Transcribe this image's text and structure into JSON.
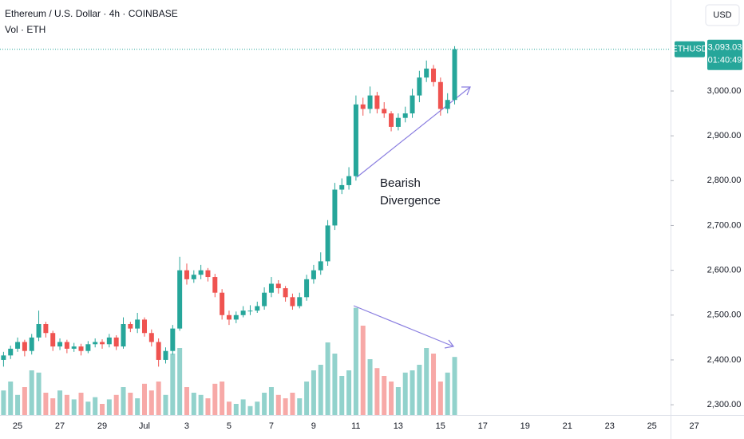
{
  "chart_data": {
    "type": "candlestick",
    "title": "Ethereum / U.S. Dollar · 4h · COINBASE",
    "volume_label": "Vol · ETH",
    "currency_button": "USD",
    "symbol_tag": "ETHUSD",
    "countdown": "01:40:49",
    "last_price": {
      "value": 3093.03,
      "label": "3,093.03"
    },
    "annotation": [
      "Bearish",
      "Divergence"
    ],
    "up_color": "#26a69a",
    "down_color": "#ef5350",
    "x_labels": [
      "25",
      "27",
      "29",
      "Jul",
      "3",
      "5",
      "7",
      "9",
      "11",
      "13",
      "15",
      "17",
      "19",
      "21",
      "23",
      "25",
      "27"
    ],
    "ylim": [
      2277,
      3203
    ],
    "yticks": [
      {
        "value": 2300,
        "label": "2,300.00"
      },
      {
        "value": 2400,
        "label": "2,400.00"
      },
      {
        "value": 2500,
        "label": "2,500.00"
      },
      {
        "value": 2600,
        "label": "2,600.00"
      },
      {
        "value": 2700,
        "label": "2,700.00"
      },
      {
        "value": 2800,
        "label": "2,800.00"
      },
      {
        "value": 2900,
        "label": "2,900.00"
      },
      {
        "value": 3000,
        "label": "3,000.00"
      }
    ],
    "vlim": [
      0,
      100
    ],
    "open": [
      2400,
      2410,
      2425,
      2440,
      2420,
      2450,
      2480,
      2460,
      2430,
      2440,
      2425,
      2430,
      2420,
      2435,
      2440,
      2435,
      2450,
      2430,
      2480,
      2470,
      2490,
      2460,
      2440,
      2400,
      2420,
      2470,
      2600,
      2580,
      2590,
      2600,
      2585,
      2550,
      2500,
      2490,
      2500,
      2510,
      2510,
      2520,
      2550,
      2570,
      2560,
      2540,
      2520,
      2540,
      2580,
      2600,
      2620,
      2700,
      2780,
      2790,
      2810,
      2970,
      2960,
      2990,
      2960,
      2950,
      2920,
      2940,
      2950,
      2990,
      3030,
      3050,
      3020,
      2960,
      2980
    ],
    "high": [
      2418,
      2432,
      2450,
      2445,
      2458,
      2510,
      2485,
      2465,
      2448,
      2445,
      2438,
      2436,
      2442,
      2448,
      2446,
      2458,
      2455,
      2495,
      2485,
      2505,
      2495,
      2468,
      2448,
      2428,
      2478,
      2630,
      2615,
      2600,
      2612,
      2605,
      2592,
      2558,
      2510,
      2508,
      2520,
      2522,
      2530,
      2562,
      2585,
      2578,
      2565,
      2548,
      2550,
      2590,
      2612,
      2640,
      2712,
      2795,
      2805,
      2830,
      2990,
      2985,
      3010,
      2998,
      2975,
      2955,
      2950,
      2965,
      3005,
      3045,
      3068,
      3058,
      3030,
      2995,
      3100
    ],
    "low": [
      2385,
      2402,
      2418,
      2408,
      2412,
      2442,
      2450,
      2420,
      2422,
      2415,
      2418,
      2410,
      2415,
      2428,
      2425,
      2428,
      2422,
      2425,
      2462,
      2460,
      2452,
      2430,
      2385,
      2392,
      2412,
      2465,
      2568,
      2572,
      2580,
      2575,
      2540,
      2490,
      2478,
      2482,
      2495,
      2500,
      2505,
      2512,
      2540,
      2548,
      2530,
      2512,
      2515,
      2532,
      2570,
      2590,
      2610,
      2690,
      2770,
      2780,
      2800,
      2945,
      2950,
      2950,
      2940,
      2910,
      2912,
      2930,
      2940,
      2975,
      3020,
      3010,
      2945,
      2950,
      2970
    ],
    "close": [
      2410,
      2425,
      2440,
      2420,
      2450,
      2480,
      2460,
      2430,
      2440,
      2425,
      2430,
      2420,
      2435,
      2440,
      2435,
      2450,
      2430,
      2480,
      2470,
      2490,
      2460,
      2440,
      2400,
      2420,
      2470,
      2600,
      2580,
      2590,
      2600,
      2585,
      2550,
      2500,
      2490,
      2500,
      2510,
      2510,
      2520,
      2550,
      2570,
      2560,
      2540,
      2520,
      2540,
      2580,
      2600,
      2620,
      2700,
      2780,
      2790,
      2810,
      2970,
      2960,
      2990,
      2960,
      2950,
      2920,
      2940,
      2950,
      2990,
      3030,
      3050,
      3020,
      2960,
      2980,
      3093.03
    ],
    "volume": [
      22,
      30,
      18,
      25,
      40,
      38,
      20,
      15,
      22,
      18,
      14,
      20,
      12,
      16,
      10,
      14,
      18,
      25,
      20,
      15,
      28,
      22,
      30,
      18,
      55,
      60,
      25,
      20,
      18,
      15,
      28,
      30,
      12,
      10,
      14,
      8,
      12,
      20,
      25,
      18,
      15,
      20,
      15,
      30,
      40,
      45,
      65,
      55,
      35,
      40,
      96,
      80,
      50,
      42,
      35,
      30,
      25,
      38,
      40,
      45,
      60,
      55,
      30,
      38,
      52
    ]
  }
}
